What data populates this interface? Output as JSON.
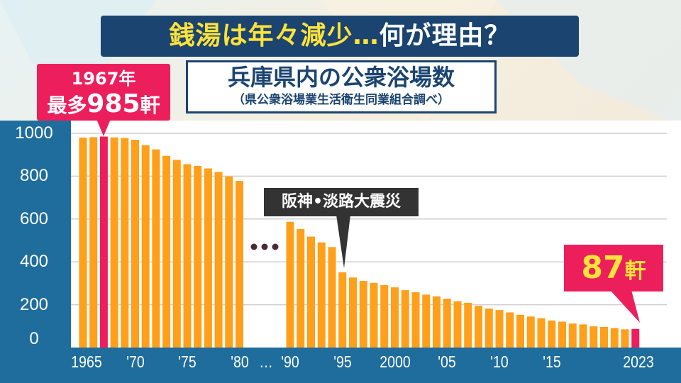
{
  "title": {
    "part1": "銭湯は年々減少…",
    "part2": "何が理由？"
  },
  "subtitle": {
    "main": "兵庫県内の公衆浴場数",
    "source": "（県公衆浴場業生活衛生同業組合調べ）"
  },
  "callouts": {
    "peak_year": "1967年",
    "peak_prefix": "最多",
    "peak_value": "985",
    "peak_unit": "軒",
    "event": "阪神•淡路大震災",
    "latest_value": "87",
    "latest_unit": "軒"
  },
  "colors": {
    "bar": "#ff9f1a",
    "highlight": "#ec1f5c",
    "band": "#1f6d9c",
    "navy": "#1b4470"
  },
  "chart_data": {
    "type": "bar",
    "title": "兵庫県内の公衆浴場数",
    "ylabel": "",
    "xlabel": "",
    "ylim": [
      0,
      1000
    ],
    "yticks": [
      "0",
      "200",
      "400",
      "600",
      "800",
      "1000"
    ],
    "xtick_labels": [
      {
        "year": 1965,
        "label": "1965"
      },
      {
        "year": 1970,
        "label": "'70"
      },
      {
        "year": 1975,
        "label": "'75"
      },
      {
        "year": 1980,
        "label": "'80"
      },
      {
        "year": 1985,
        "label": "…"
      },
      {
        "year": 1990,
        "label": "'90"
      },
      {
        "year": 1995,
        "label": "'95"
      },
      {
        "year": 2000,
        "label": "2000"
      },
      {
        "year": 2005,
        "label": "'05"
      },
      {
        "year": 2010,
        "label": "'10"
      },
      {
        "year": 2015,
        "label": "'15"
      },
      {
        "year": 2023,
        "label": "2023"
      }
    ],
    "gap_marker": "•••",
    "years": [
      1965,
      1966,
      1967,
      1968,
      1969,
      1970,
      1971,
      1972,
      1973,
      1974,
      1975,
      1976,
      1977,
      1978,
      1979,
      1980,
      1990,
      1991,
      1992,
      1993,
      1994,
      1995,
      1996,
      1997,
      1998,
      1999,
      2000,
      2001,
      2002,
      2003,
      2004,
      2005,
      2006,
      2007,
      2008,
      2009,
      2010,
      2011,
      2012,
      2013,
      2014,
      2015,
      2016,
      2017,
      2018,
      2019,
      2020,
      2021,
      2022,
      2023
    ],
    "values": [
      980,
      982,
      985,
      981,
      978,
      970,
      945,
      925,
      895,
      876,
      856,
      848,
      836,
      820,
      799,
      778,
      587,
      553,
      518,
      491,
      469,
      351,
      327,
      311,
      302,
      292,
      281,
      268,
      258,
      247,
      239,
      228,
      216,
      209,
      195,
      182,
      175,
      164,
      153,
      145,
      137,
      126,
      121,
      112,
      108,
      99,
      96,
      91,
      85,
      87
    ],
    "highlight_years": [
      1967,
      2023
    ]
  }
}
